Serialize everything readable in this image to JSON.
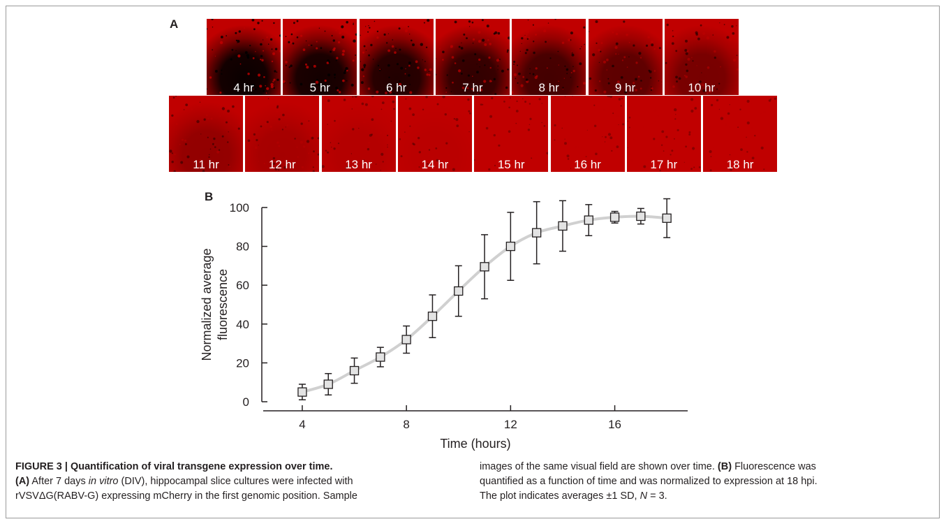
{
  "panel_a": {
    "letter": "A",
    "colors": {
      "signal": "#c00000",
      "background": "#000000"
    },
    "images": [
      {
        "label": "4 hr",
        "fluorescence": 5
      },
      {
        "label": "5 hr",
        "fluorescence": 9
      },
      {
        "label": "6 hr",
        "fluorescence": 16
      },
      {
        "label": "7 hr",
        "fluorescence": 23
      },
      {
        "label": "8 hr",
        "fluorescence": 32
      },
      {
        "label": "9 hr",
        "fluorescence": 44
      },
      {
        "label": "10 hr",
        "fluorescence": 57
      },
      {
        "label": "11 hr",
        "fluorescence": 70
      },
      {
        "label": "12 hr",
        "fluorescence": 80
      },
      {
        "label": "13 hr",
        "fluorescence": 87
      },
      {
        "label": "14 hr",
        "fluorescence": 90
      },
      {
        "label": "15 hr",
        "fluorescence": 93
      },
      {
        "label": "16 hr",
        "fluorescence": 95
      },
      {
        "label": "17 hr",
        "fluorescence": 95
      },
      {
        "label": "18 hr",
        "fluorescence": 95
      }
    ]
  },
  "panel_b": {
    "letter": "B"
  },
  "chart_data": {
    "type": "line",
    "xlabel": "Time (hours)",
    "ylabel_lines": [
      "Normalized average",
      "fluorescence"
    ],
    "xlim": [
      2.5,
      18.8
    ],
    "ylim": [
      0,
      100
    ],
    "xticks": [
      4,
      8,
      12,
      16
    ],
    "yticks": [
      0,
      20,
      40,
      60,
      80,
      100
    ],
    "grid": false,
    "marker": "open-square",
    "line_color": "#d0d0d0",
    "x": [
      4,
      5,
      6,
      7,
      8,
      9,
      10,
      11,
      12,
      13,
      14,
      15,
      16,
      17,
      18
    ],
    "y": [
      5,
      9,
      16,
      23,
      32,
      44,
      57,
      69.5,
      80,
      87,
      90.5,
      93.5,
      95,
      95.5,
      94.5
    ],
    "sd": [
      4,
      5.5,
      6.5,
      5,
      7,
      11,
      13,
      16.5,
      17.5,
      16,
      13,
      8,
      3,
      4,
      10
    ]
  },
  "caption": {
    "figure_label": "FIGURE 3 | Quantification of viral transgene expression over time.",
    "col1": [
      [
        {
          "t": "(A)",
          "b": true
        },
        {
          "t": " After 7 days "
        },
        {
          "t": "in vitro",
          "i": true
        },
        {
          "t": " (DIV), hippocampal slice cultures were infected with"
        }
      ],
      [
        {
          "t": "rVSVΔG(RABV-G) expressing mCherry in the first genomic position. Sample"
        }
      ]
    ],
    "col2": [
      [
        {
          "t": "images of the same visual field are shown over time. "
        },
        {
          "t": "(B)",
          "b": true
        },
        {
          "t": " Fluorescence was"
        }
      ],
      [
        {
          "t": "quantified as a function of time and was normalized to expression at 18 hpi."
        }
      ],
      [
        {
          "t": "The plot indicates averages ±1 SD, "
        },
        {
          "t": "N",
          "i": true
        },
        {
          "t": " = 3."
        }
      ]
    ]
  }
}
